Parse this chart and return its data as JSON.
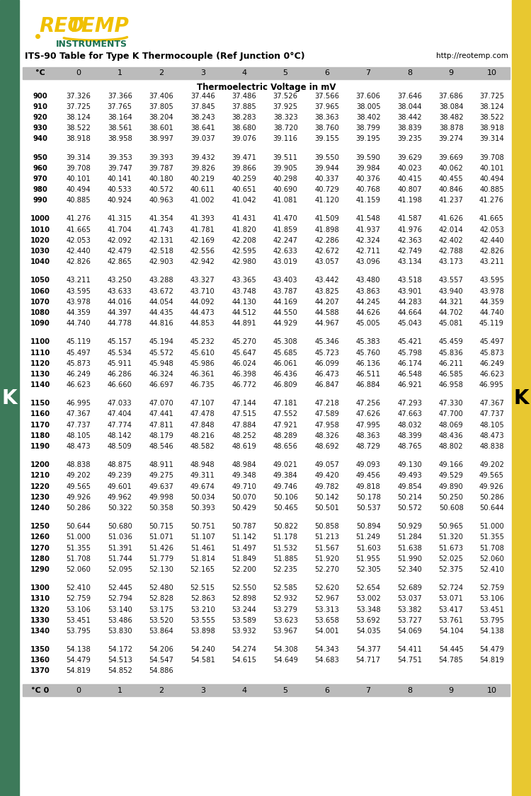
{
  "title": "ITS-90 Table for Type K Thermocouple (Ref Junction 0°C)",
  "subtitle": "Thermoelectric Voltage in mV",
  "url": "http://reotemp.com",
  "col_headers": [
    "°C",
    "0",
    "1",
    "2",
    "3",
    "4",
    "5",
    "6",
    "7",
    "8",
    "9",
    "10"
  ],
  "bottom_col0": "°C 0",
  "rows": [
    [
      900,
      37.326,
      37.366,
      37.406,
      37.446,
      37.486,
      37.526,
      37.566,
      37.606,
      37.646,
      37.686,
      37.725
    ],
    [
      910,
      37.725,
      37.765,
      37.805,
      37.845,
      37.885,
      37.925,
      37.965,
      38.005,
      38.044,
      38.084,
      38.124
    ],
    [
      920,
      38.124,
      38.164,
      38.204,
      38.243,
      38.283,
      38.323,
      38.363,
      38.402,
      38.442,
      38.482,
      38.522
    ],
    [
      930,
      38.522,
      38.561,
      38.601,
      38.641,
      38.68,
      38.72,
      38.76,
      38.799,
      38.839,
      38.878,
      38.918
    ],
    [
      940,
      38.918,
      38.958,
      38.997,
      39.037,
      39.076,
      39.116,
      39.155,
      39.195,
      39.235,
      39.274,
      39.314
    ],
    [
      950,
      39.314,
      39.353,
      39.393,
      39.432,
      39.471,
      39.511,
      39.55,
      39.59,
      39.629,
      39.669,
      39.708
    ],
    [
      960,
      39.708,
      39.747,
      39.787,
      39.826,
      39.866,
      39.905,
      39.944,
      39.984,
      40.023,
      40.062,
      40.101
    ],
    [
      970,
      40.101,
      40.141,
      40.18,
      40.219,
      40.259,
      40.298,
      40.337,
      40.376,
      40.415,
      40.455,
      40.494
    ],
    [
      980,
      40.494,
      40.533,
      40.572,
      40.611,
      40.651,
      40.69,
      40.729,
      40.768,
      40.807,
      40.846,
      40.885
    ],
    [
      990,
      40.885,
      40.924,
      40.963,
      41.002,
      41.042,
      41.081,
      41.12,
      41.159,
      41.198,
      41.237,
      41.276
    ],
    [
      1000,
      41.276,
      41.315,
      41.354,
      41.393,
      41.431,
      41.47,
      41.509,
      41.548,
      41.587,
      41.626,
      41.665
    ],
    [
      1010,
      41.665,
      41.704,
      41.743,
      41.781,
      41.82,
      41.859,
      41.898,
      41.937,
      41.976,
      42.014,
      42.053
    ],
    [
      1020,
      42.053,
      42.092,
      42.131,
      42.169,
      42.208,
      42.247,
      42.286,
      42.324,
      42.363,
      42.402,
      42.44
    ],
    [
      1030,
      42.44,
      42.479,
      42.518,
      42.556,
      42.595,
      42.633,
      42.672,
      42.711,
      42.749,
      42.788,
      42.826
    ],
    [
      1040,
      42.826,
      42.865,
      42.903,
      42.942,
      42.98,
      43.019,
      43.057,
      43.096,
      43.134,
      43.173,
      43.211
    ],
    [
      1050,
      43.211,
      43.25,
      43.288,
      43.327,
      43.365,
      43.403,
      43.442,
      43.48,
      43.518,
      43.557,
      43.595
    ],
    [
      1060,
      43.595,
      43.633,
      43.672,
      43.71,
      43.748,
      43.787,
      43.825,
      43.863,
      43.901,
      43.94,
      43.978
    ],
    [
      1070,
      43.978,
      44.016,
      44.054,
      44.092,
      44.13,
      44.169,
      44.207,
      44.245,
      44.283,
      44.321,
      44.359
    ],
    [
      1080,
      44.359,
      44.397,
      44.435,
      44.473,
      44.512,
      44.55,
      44.588,
      44.626,
      44.664,
      44.702,
      44.74
    ],
    [
      1090,
      44.74,
      44.778,
      44.816,
      44.853,
      44.891,
      44.929,
      44.967,
      45.005,
      45.043,
      45.081,
      45.119
    ],
    [
      1100,
      45.119,
      45.157,
      45.194,
      45.232,
      45.27,
      45.308,
      45.346,
      45.383,
      45.421,
      45.459,
      45.497
    ],
    [
      1110,
      45.497,
      45.534,
      45.572,
      45.61,
      45.647,
      45.685,
      45.723,
      45.76,
      45.798,
      45.836,
      45.873
    ],
    [
      1120,
      45.873,
      45.911,
      45.948,
      45.986,
      46.024,
      46.061,
      46.099,
      46.136,
      46.174,
      46.211,
      46.249
    ],
    [
      1130,
      46.249,
      46.286,
      46.324,
      46.361,
      46.398,
      46.436,
      46.473,
      46.511,
      46.548,
      46.585,
      46.623
    ],
    [
      1140,
      46.623,
      46.66,
      46.697,
      46.735,
      46.772,
      46.809,
      46.847,
      46.884,
      46.921,
      46.958,
      46.995
    ],
    [
      1150,
      46.995,
      47.033,
      47.07,
      47.107,
      47.144,
      47.181,
      47.218,
      47.256,
      47.293,
      47.33,
      47.367
    ],
    [
      1160,
      47.367,
      47.404,
      47.441,
      47.478,
      47.515,
      47.552,
      47.589,
      47.626,
      47.663,
      47.7,
      47.737
    ],
    [
      1170,
      47.737,
      47.774,
      47.811,
      47.848,
      47.884,
      47.921,
      47.958,
      47.995,
      48.032,
      48.069,
      48.105
    ],
    [
      1180,
      48.105,
      48.142,
      48.179,
      48.216,
      48.252,
      48.289,
      48.326,
      48.363,
      48.399,
      48.436,
      48.473
    ],
    [
      1190,
      48.473,
      48.509,
      48.546,
      48.582,
      48.619,
      48.656,
      48.692,
      48.729,
      48.765,
      48.802,
      48.838
    ],
    [
      1200,
      48.838,
      48.875,
      48.911,
      48.948,
      48.984,
      49.021,
      49.057,
      49.093,
      49.13,
      49.166,
      49.202
    ],
    [
      1210,
      49.202,
      49.239,
      49.275,
      49.311,
      49.348,
      49.384,
      49.42,
      49.456,
      49.493,
      49.529,
      49.565
    ],
    [
      1220,
      49.565,
      49.601,
      49.637,
      49.674,
      49.71,
      49.746,
      49.782,
      49.818,
      49.854,
      49.89,
      49.926
    ],
    [
      1230,
      49.926,
      49.962,
      49.998,
      50.034,
      50.07,
      50.106,
      50.142,
      50.178,
      50.214,
      50.25,
      50.286
    ],
    [
      1240,
      50.286,
      50.322,
      50.358,
      50.393,
      50.429,
      50.465,
      50.501,
      50.537,
      50.572,
      50.608,
      50.644
    ],
    [
      1250,
      50.644,
      50.68,
      50.715,
      50.751,
      50.787,
      50.822,
      50.858,
      50.894,
      50.929,
      50.965,
      51.0
    ],
    [
      1260,
      51.0,
      51.036,
      51.071,
      51.107,
      51.142,
      51.178,
      51.213,
      51.249,
      51.284,
      51.32,
      51.355
    ],
    [
      1270,
      51.355,
      51.391,
      51.426,
      51.461,
      51.497,
      51.532,
      51.567,
      51.603,
      51.638,
      51.673,
      51.708
    ],
    [
      1280,
      51.708,
      51.744,
      51.779,
      51.814,
      51.849,
      51.885,
      51.92,
      51.955,
      51.99,
      52.025,
      52.06
    ],
    [
      1290,
      52.06,
      52.095,
      52.13,
      52.165,
      52.2,
      52.235,
      52.27,
      52.305,
      52.34,
      52.375,
      52.41
    ],
    [
      1300,
      52.41,
      52.445,
      52.48,
      52.515,
      52.55,
      52.585,
      52.62,
      52.654,
      52.689,
      52.724,
      52.759
    ],
    [
      1310,
      52.759,
      52.794,
      52.828,
      52.863,
      52.898,
      52.932,
      52.967,
      53.002,
      53.037,
      53.071,
      53.106
    ],
    [
      1320,
      53.106,
      53.14,
      53.175,
      53.21,
      53.244,
      53.279,
      53.313,
      53.348,
      53.382,
      53.417,
      53.451
    ],
    [
      1330,
      53.451,
      53.486,
      53.52,
      53.555,
      53.589,
      53.623,
      53.658,
      53.692,
      53.727,
      53.761,
      53.795
    ],
    [
      1340,
      53.795,
      53.83,
      53.864,
      53.898,
      53.932,
      53.967,
      54.001,
      54.035,
      54.069,
      54.104,
      54.138
    ],
    [
      1350,
      54.138,
      54.172,
      54.206,
      54.24,
      54.274,
      54.308,
      54.343,
      54.377,
      54.411,
      54.445,
      54.479
    ],
    [
      1360,
      54.479,
      54.513,
      54.547,
      54.581,
      54.615,
      54.649,
      54.683,
      54.717,
      54.751,
      54.785,
      54.819
    ],
    [
      1370,
      54.819,
      54.852,
      54.886,
      null,
      null,
      null,
      null,
      null,
      null,
      null,
      null
    ]
  ],
  "bg_color": "#ffffff",
  "header_bg": "#bbbbbb",
  "side_green": "#3d7a5a",
  "side_yellow": "#e8c830",
  "logo_yellow": "#f0c000",
  "logo_green": "#1a7050",
  "data_color": "#111111",
  "font_size_data": 7.2,
  "font_size_header": 8.0,
  "font_size_title": 9.0,
  "font_size_subtitle": 8.5,
  "font_size_logo": 20,
  "font_size_instruments": 9,
  "font_size_k": 20
}
